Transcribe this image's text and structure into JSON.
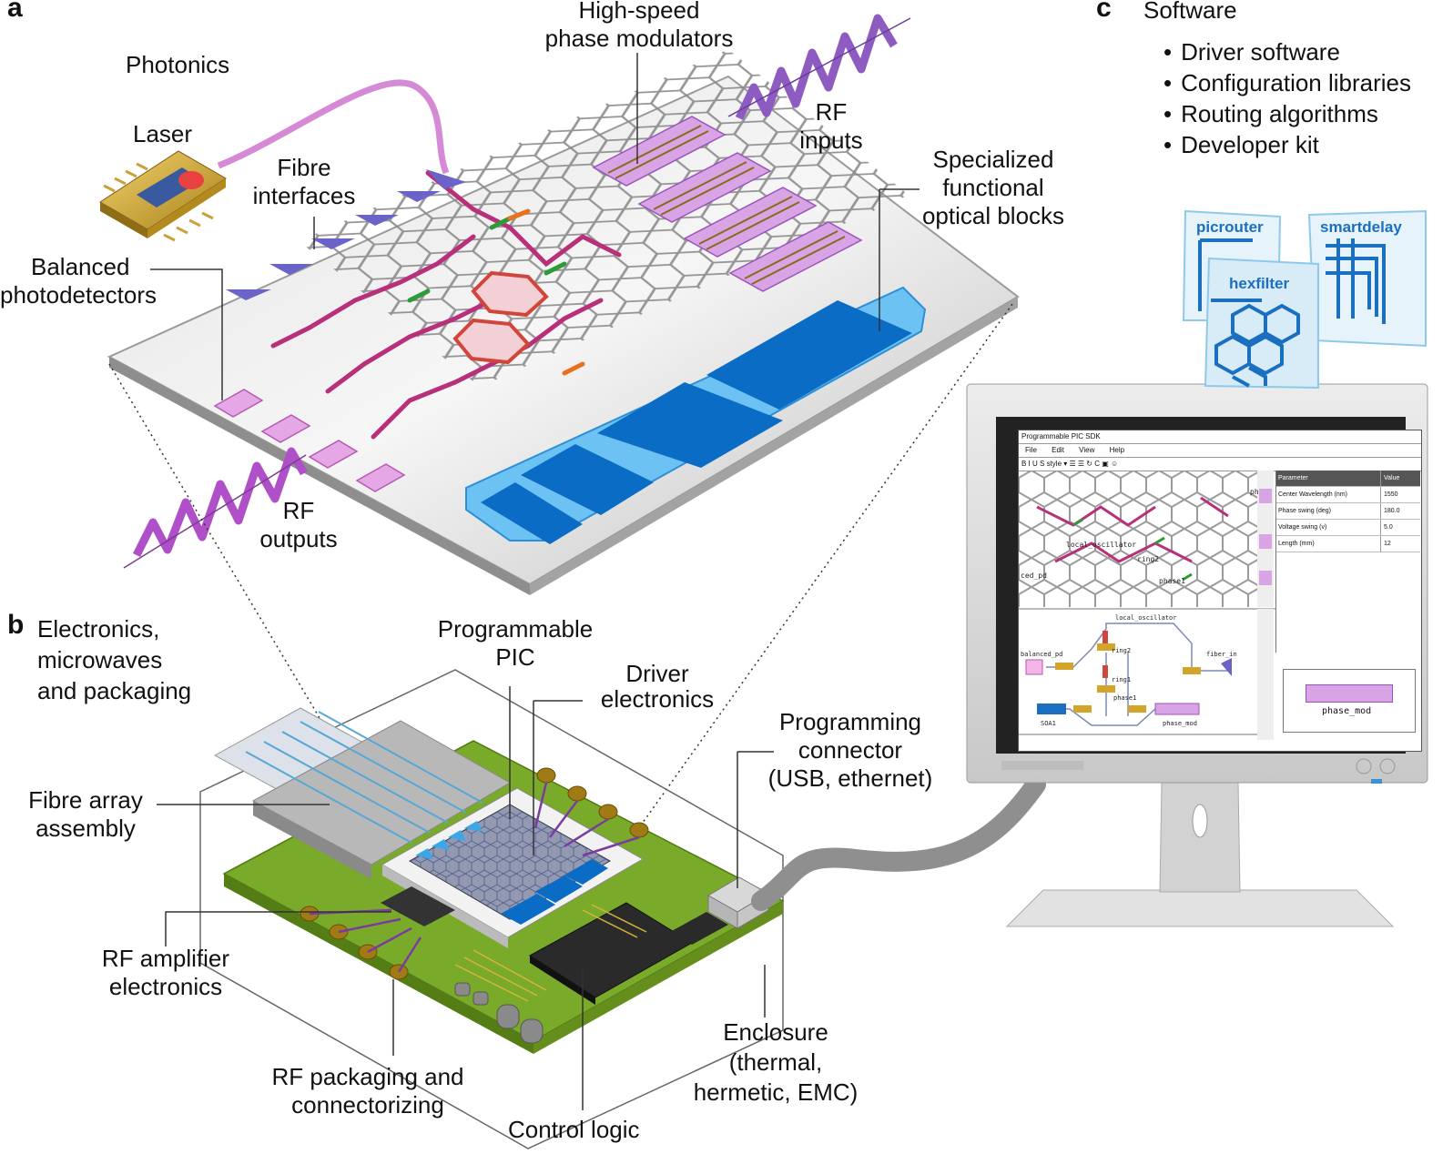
{
  "panels": {
    "a": "a",
    "b": "b",
    "c": "c"
  },
  "photonics": {
    "title": "Photonics",
    "laser": "Laser",
    "fibre_interfaces": [
      "Fibre",
      "interfaces"
    ],
    "balanced_photodetectors": [
      "Balanced",
      "photodetectors"
    ],
    "phase_modulators": [
      "High-speed",
      "phase modulators"
    ],
    "rf_inputs": [
      "RF",
      "inputs"
    ],
    "functional_blocks": [
      "Specialized",
      "functional",
      "optical blocks"
    ],
    "rf_outputs": [
      "RF",
      "outputs"
    ]
  },
  "electronics": {
    "title": [
      "Electronics,",
      "microwaves",
      "and packaging"
    ],
    "programmable_pic": [
      "Programmable",
      "PIC"
    ],
    "driver_electronics": [
      "Driver",
      "electronics"
    ],
    "programming_connector": [
      "Programming",
      "connector",
      "(USB, ethernet)"
    ],
    "fibre_array": [
      "Fibre array",
      "assembly"
    ],
    "rf_amplifier": [
      "RF amplifier",
      "electronics"
    ],
    "rf_packaging": [
      "RF packaging and",
      "connectorizing"
    ],
    "control_logic": "Control logic",
    "enclosure": [
      "Enclosure",
      "(thermal,",
      "hermetic, EMC)"
    ]
  },
  "software": {
    "title": "Software",
    "items": [
      "Driver software",
      "Configuration libraries",
      "Routing algorithms",
      "Developer kit"
    ],
    "tiles": [
      "picrouter",
      "smartdelay",
      "hexfilter"
    ]
  },
  "sdk_window": {
    "title": "Programmable PIC SDK",
    "menu": [
      "File",
      "Edit",
      "View",
      "Help"
    ],
    "toolbar": "B I U S style ▾ ☰ ☰ ↻ C ▣ ☺",
    "params_header": [
      "Parameter",
      "Value"
    ],
    "params": [
      {
        "p": "Center Wavelength (nm)",
        "v": "1550"
      },
      {
        "p": "Phase swing (deg)",
        "v": "180.0"
      },
      {
        "p": "Voltage swing (v)",
        "v": "5.0"
      },
      {
        "p": "Length (mm)",
        "v": "12"
      }
    ],
    "canvas_labels": [
      "local_oscillator",
      "ring2",
      "phase1",
      "ced_pd",
      "ph"
    ],
    "schematic_labels": [
      "local_oscillator",
      "ring2",
      "ring1",
      "balanced_pd",
      "fiber_in",
      "SOA1",
      "phase1",
      "phase_mod"
    ],
    "preview_label": "phase_mod"
  },
  "colors": {
    "chip_surface": "#c9c9c9",
    "waveguide_magenta": "#b8307a",
    "waveguide_grey": "#8a8a8a",
    "block_blue": "#0a6cc4",
    "block_light": "#6cc2f2",
    "pcb_green": "#7aaa2a",
    "rf_purple": "#8e5bc1",
    "monitor_grey": "#d6d6d6"
  }
}
